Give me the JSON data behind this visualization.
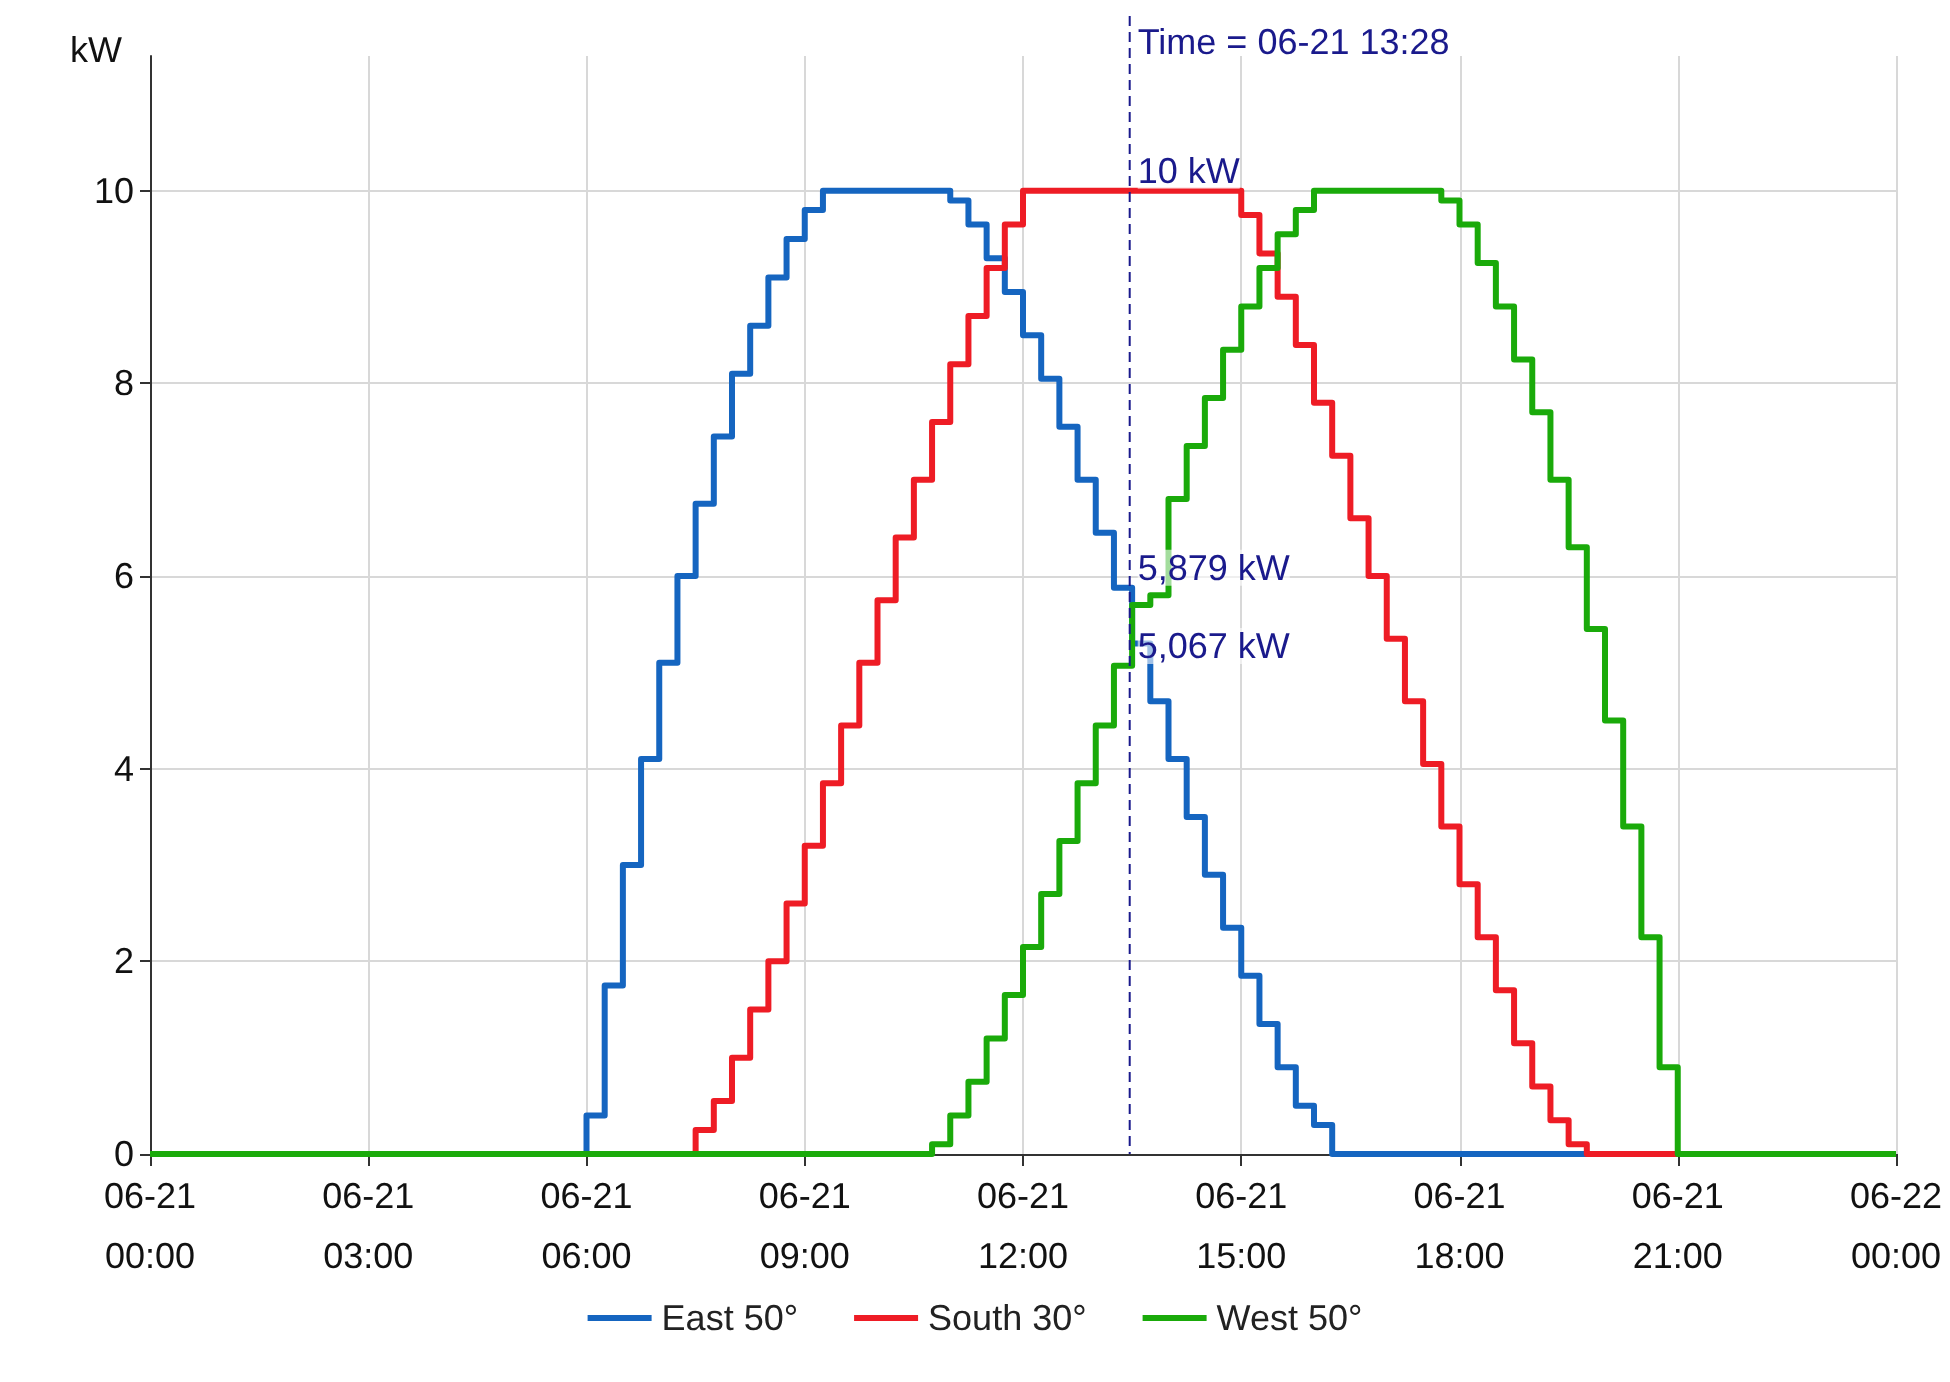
{
  "chart_data": {
    "type": "step",
    "ylabel": "kW",
    "xlim": [
      "2000-06-21T00:00",
      "2000-06-22T00:00"
    ],
    "ylim": [
      0,
      11.4
    ],
    "xticks": [
      {
        "value": "2000-06-21T00:00",
        "label": "06-21\n00:00"
      },
      {
        "value": "2000-06-21T03:00",
        "label": "06-21\n03:00"
      },
      {
        "value": "2000-06-21T06:00",
        "label": "06-21\n06:00"
      },
      {
        "value": "2000-06-21T09:00",
        "label": "06-21\n09:00"
      },
      {
        "value": "2000-06-21T12:00",
        "label": "06-21\n12:00"
      },
      {
        "value": "2000-06-21T15:00",
        "label": "06-21\n15:00"
      },
      {
        "value": "2000-06-21T18:00",
        "label": "06-21\n18:00"
      },
      {
        "value": "2000-06-21T21:00",
        "label": "06-21\n21:00"
      },
      {
        "value": "2000-06-22T00:00",
        "label": "06-22\n00:00"
      }
    ],
    "yticks": [
      0,
      2,
      4,
      6,
      8,
      10
    ],
    "grid": true,
    "legend": "bottom",
    "ref_lines": [
      {
        "axis": "x",
        "value": "2000-06-21T13:28",
        "label": "Time = 06-21 13:28",
        "color": "#1a1a8c",
        "line_style": "dashed"
      }
    ],
    "annotations": [
      {
        "text": "10 kW",
        "x": "2000-06-21T13:28",
        "y": 10
      },
      {
        "text": "5,879 kW",
        "x": "2000-06-21T13:28",
        "y": 5.879
      },
      {
        "text": "5,067 kW",
        "x": "2000-06-21T13:28",
        "y": 5.067
      }
    ],
    "series": [
      {
        "name": "East 50°",
        "color": "#1565c0",
        "x": [
          "2000-06-21T00:00",
          "2000-06-21T06:00",
          "2000-06-21T06:15",
          "2000-06-21T06:30",
          "2000-06-21T06:45",
          "2000-06-21T07:00",
          "2000-06-21T07:15",
          "2000-06-21T07:30",
          "2000-06-21T07:45",
          "2000-06-21T08:00",
          "2000-06-21T08:15",
          "2000-06-21T08:30",
          "2000-06-21T08:45",
          "2000-06-21T09:00",
          "2000-06-21T09:15",
          "2000-06-21T09:30",
          "2000-06-21T09:45",
          "2000-06-21T10:00",
          "2000-06-21T10:15",
          "2000-06-21T10:30",
          "2000-06-21T10:45",
          "2000-06-21T11:00",
          "2000-06-21T11:15",
          "2000-06-21T11:30",
          "2000-06-21T11:45",
          "2000-06-21T12:00",
          "2000-06-21T12:15",
          "2000-06-21T12:30",
          "2000-06-21T12:45",
          "2000-06-21T13:00",
          "2000-06-21T13:15",
          "2000-06-21T13:30",
          "2000-06-21T13:45",
          "2000-06-21T14:00",
          "2000-06-21T14:15",
          "2000-06-21T14:30",
          "2000-06-21T14:45",
          "2000-06-21T15:00",
          "2000-06-21T15:15",
          "2000-06-21T15:30",
          "2000-06-21T15:45",
          "2000-06-21T16:00",
          "2000-06-21T16:15",
          "2000-06-22T00:00"
        ],
        "values": [
          0,
          0.4,
          1.75,
          3.0,
          4.1,
          5.1,
          6.0,
          6.75,
          7.45,
          8.1,
          8.6,
          9.1,
          9.5,
          9.8,
          10,
          10,
          10,
          10,
          10,
          10,
          10,
          9.9,
          9.65,
          9.3,
          8.95,
          8.5,
          8.05,
          7.55,
          7.0,
          6.45,
          5.88,
          5.3,
          4.7,
          4.1,
          3.5,
          2.9,
          2.35,
          1.85,
          1.35,
          0.9,
          0.5,
          0.3,
          0,
          0
        ]
      },
      {
        "name": "South 30°",
        "color": "#ee1c25",
        "x": [
          "2000-06-21T00:00",
          "2000-06-21T07:30",
          "2000-06-21T07:45",
          "2000-06-21T08:00",
          "2000-06-21T08:15",
          "2000-06-21T08:30",
          "2000-06-21T08:45",
          "2000-06-21T09:00",
          "2000-06-21T09:15",
          "2000-06-21T09:30",
          "2000-06-21T09:45",
          "2000-06-21T10:00",
          "2000-06-21T10:15",
          "2000-06-21T10:30",
          "2000-06-21T10:45",
          "2000-06-21T11:00",
          "2000-06-21T11:15",
          "2000-06-21T11:30",
          "2000-06-21T11:45",
          "2000-06-21T12:00",
          "2000-06-21T12:15",
          "2000-06-21T12:30",
          "2000-06-21T12:45",
          "2000-06-21T13:00",
          "2000-06-21T13:15",
          "2000-06-21T13:30",
          "2000-06-21T13:45",
          "2000-06-21T14:00",
          "2000-06-21T14:15",
          "2000-06-21T14:30",
          "2000-06-21T14:45",
          "2000-06-21T15:00",
          "2000-06-21T15:15",
          "2000-06-21T15:30",
          "2000-06-21T15:45",
          "2000-06-21T16:00",
          "2000-06-21T16:15",
          "2000-06-21T16:30",
          "2000-06-21T16:45",
          "2000-06-21T17:00",
          "2000-06-21T17:15",
          "2000-06-21T17:30",
          "2000-06-21T17:45",
          "2000-06-21T18:00",
          "2000-06-21T18:15",
          "2000-06-21T18:30",
          "2000-06-21T18:45",
          "2000-06-21T19:00",
          "2000-06-21T19:15",
          "2000-06-21T19:30",
          "2000-06-21T19:45",
          "2000-06-22T00:00"
        ],
        "values": [
          0,
          0.25,
          0.55,
          1.0,
          1.5,
          2.0,
          2.6,
          3.2,
          3.85,
          4.45,
          5.1,
          5.75,
          6.4,
          7.0,
          7.6,
          8.2,
          8.7,
          9.2,
          9.65,
          10,
          10,
          10,
          10,
          10,
          10,
          10,
          10,
          10,
          10,
          10,
          10,
          9.75,
          9.35,
          8.9,
          8.4,
          7.8,
          7.25,
          6.6,
          6.0,
          5.35,
          4.7,
          4.05,
          3.4,
          2.8,
          2.25,
          1.7,
          1.15,
          0.7,
          0.35,
          0.1,
          0,
          0
        ]
      },
      {
        "name": "West 50°",
        "color": "#1aaa0a",
        "x": [
          "2000-06-21T00:00",
          "2000-06-21T10:45",
          "2000-06-21T11:00",
          "2000-06-21T11:15",
          "2000-06-21T11:30",
          "2000-06-21T11:45",
          "2000-06-21T12:00",
          "2000-06-21T12:15",
          "2000-06-21T12:30",
          "2000-06-21T12:45",
          "2000-06-21T13:00",
          "2000-06-21T13:15",
          "2000-06-21T13:30",
          "2000-06-21T13:45",
          "2000-06-21T14:00",
          "2000-06-21T14:15",
          "2000-06-21T14:30",
          "2000-06-21T14:45",
          "2000-06-21T15:00",
          "2000-06-21T15:15",
          "2000-06-21T15:30",
          "2000-06-21T15:45",
          "2000-06-21T16:00",
          "2000-06-21T16:15",
          "2000-06-21T16:30",
          "2000-06-21T16:45",
          "2000-06-21T17:00",
          "2000-06-21T17:15",
          "2000-06-21T17:30",
          "2000-06-21T17:45",
          "2000-06-21T18:00",
          "2000-06-21T18:15",
          "2000-06-21T18:30",
          "2000-06-21T18:45",
          "2000-06-21T19:00",
          "2000-06-21T19:15",
          "2000-06-21T19:30",
          "2000-06-21T19:45",
          "2000-06-21T20:00",
          "2000-06-21T20:15",
          "2000-06-21T20:30",
          "2000-06-21T20:45",
          "2000-06-21T21:00",
          "2000-06-22T00:00"
        ],
        "values": [
          0,
          0.1,
          0.4,
          0.75,
          1.2,
          1.65,
          2.15,
          2.7,
          3.25,
          3.85,
          4.45,
          5.07,
          5.7,
          5.8,
          6.8,
          7.35,
          7.85,
          8.35,
          8.8,
          9.2,
          9.55,
          9.8,
          10,
          10,
          10,
          10,
          10,
          10,
          10,
          9.9,
          9.65,
          9.25,
          8.8,
          8.25,
          7.7,
          7.0,
          6.3,
          5.45,
          4.5,
          3.4,
          2.25,
          0.9,
          0,
          0
        ]
      }
    ]
  }
}
